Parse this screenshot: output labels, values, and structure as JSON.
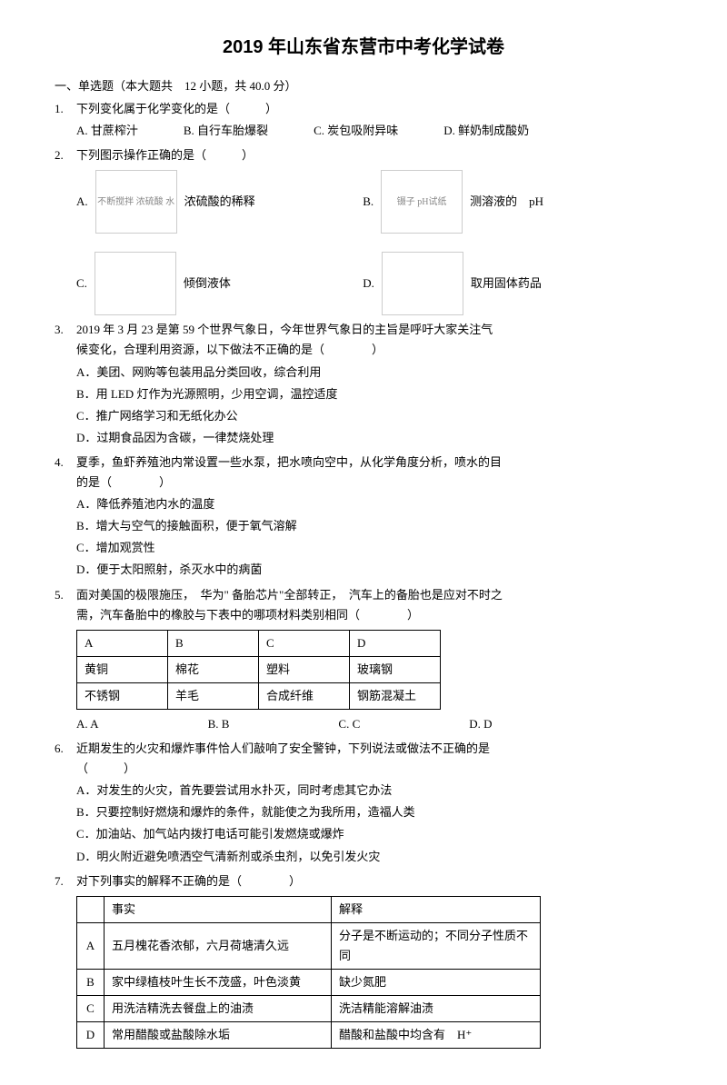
{
  "title": "2019 年山东省东营市中考化学试卷",
  "section_header": "一、单选题（本大题共　12 小题，共 40.0 分）",
  "q1": {
    "num": "1.",
    "stem": "下列变化属于化学变化的是（　　　）",
    "a": "A. 甘蔗榨汁",
    "b": "B. 自行车胎爆裂",
    "c": "C. 炭包吸附异味",
    "d": "D. 鲜奶制成酸奶"
  },
  "q2": {
    "num": "2.",
    "stem": "下列图示操作正确的是（　　　）",
    "a_label": "A.",
    "a_desc": "浓硫酸的稀释",
    "a_img": "不断搅拌\n浓硫酸\n水",
    "b_label": "B.",
    "b_desc": "测溶液的　pH",
    "b_img": "镊子\npH试纸",
    "c_label": "C.",
    "c_desc": "倾倒液体",
    "c_img": "",
    "d_label": "D.",
    "d_desc": "取用固体药品",
    "d_img": ""
  },
  "q3": {
    "num": "3.",
    "stem1": "2019 年 3 月 23 是第 59 个世界气象日，今年世界气象日的主旨是呼吁大家关注气",
    "stem2": "候变化，合理利用资源，以下做法不正确的是（　　　　）",
    "a": "A．美团、网购等包装用品分类回收，综合利用",
    "b": "B．用 LED 灯作为光源照明，少用空调，温控适度",
    "c": "C．推广网络学习和无纸化办公",
    "d": "D．过期食品因为含碳，一律焚烧处理"
  },
  "q4": {
    "num": "4.",
    "stem1": "夏季，鱼虾养殖池内常设置一些水泵，把水喷向空中，从化学角度分析，喷水的目",
    "stem2": "的是（　　　　）",
    "a": "A．降低养殖池内水的温度",
    "b": "B．增大与空气的接触面积，便于氧气溶解",
    "c": "C．增加观赏性",
    "d": "D．便于太阳照射，杀灭水中的病菌"
  },
  "q5": {
    "num": "5.",
    "stem1": "面对美国的极限施压，　华为\" 备胎芯片\"全部转正，　汽车上的备胎也是应对不时之",
    "stem2": "需，汽车备胎中的橡胶与下表中的哪项材料类别相同（　　　　）",
    "table": {
      "r1": [
        "A",
        "B",
        "C",
        "D"
      ],
      "r2": [
        "黄铜",
        "棉花",
        "塑料",
        "玻璃钢"
      ],
      "r3": [
        "不锈钢",
        "羊毛",
        "合成纤维",
        "钢筋混凝土"
      ]
    },
    "a": "A. A",
    "b": "B. B",
    "c": "C. C",
    "d": "D. D"
  },
  "q6": {
    "num": "6.",
    "stem1": "近期发生的火灾和爆炸事件恰人们敲响了安全警钟，下列说法或做法不正确的是",
    "stem2": "（　　　）",
    "a": "A．对发生的火灾，首先要尝试用水扑灭，同时考虑其它办法",
    "b": "B．只要控制好燃烧和爆炸的条件，就能使之为我所用，造福人类",
    "c": "C．加油站、加气站内拨打电话可能引发燃烧或爆炸",
    "d": "D．明火附近避免喷洒空气清新剂或杀虫剂，以免引发火灾"
  },
  "q7": {
    "num": "7.",
    "stem": "对下列事实的解释不正确的是（　　　　）",
    "header": [
      "",
      "事实",
      "解释"
    ],
    "rows": [
      [
        "A",
        "五月槐花香浓郁，六月荷塘清久远",
        "分子是不断运动的；不同分子性质不同"
      ],
      [
        "B",
        "家中绿植枝叶生长不茂盛，叶色淡黄",
        "缺少氮肥"
      ],
      [
        "C",
        "用洗洁精洗去餐盘上的油渍",
        "洗洁精能溶解油渍"
      ],
      [
        "D",
        "常用醋酸或盐酸除水垢",
        "醋酸和盐酸中均含有　H⁺"
      ]
    ]
  }
}
